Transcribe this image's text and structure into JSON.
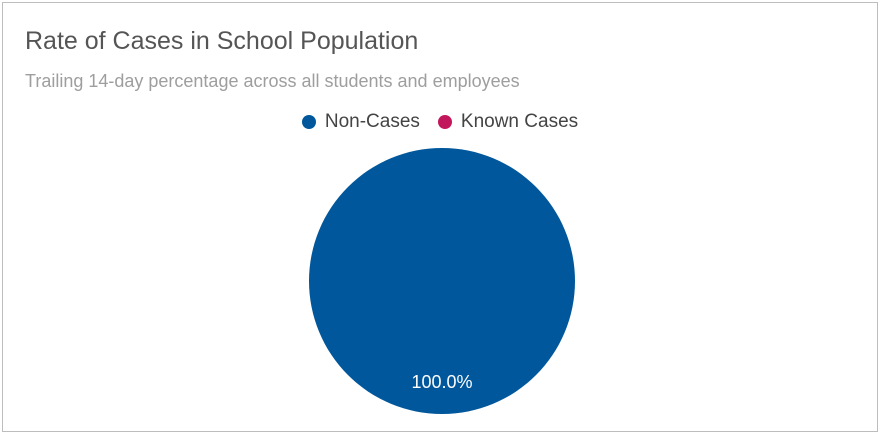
{
  "chart_data": {
    "type": "pie",
    "title": "Rate of Cases in School Population",
    "subtitle": "Trailing 14-day percentage across all students and employees",
    "legend_position": "top-center",
    "series": [
      {
        "name": "Non-Cases",
        "value": 100.0,
        "label": "100.0%",
        "color": "#01579b"
      },
      {
        "name": "Known Cases",
        "value": 0.0,
        "label": "",
        "color": "#c2185b"
      }
    ]
  }
}
